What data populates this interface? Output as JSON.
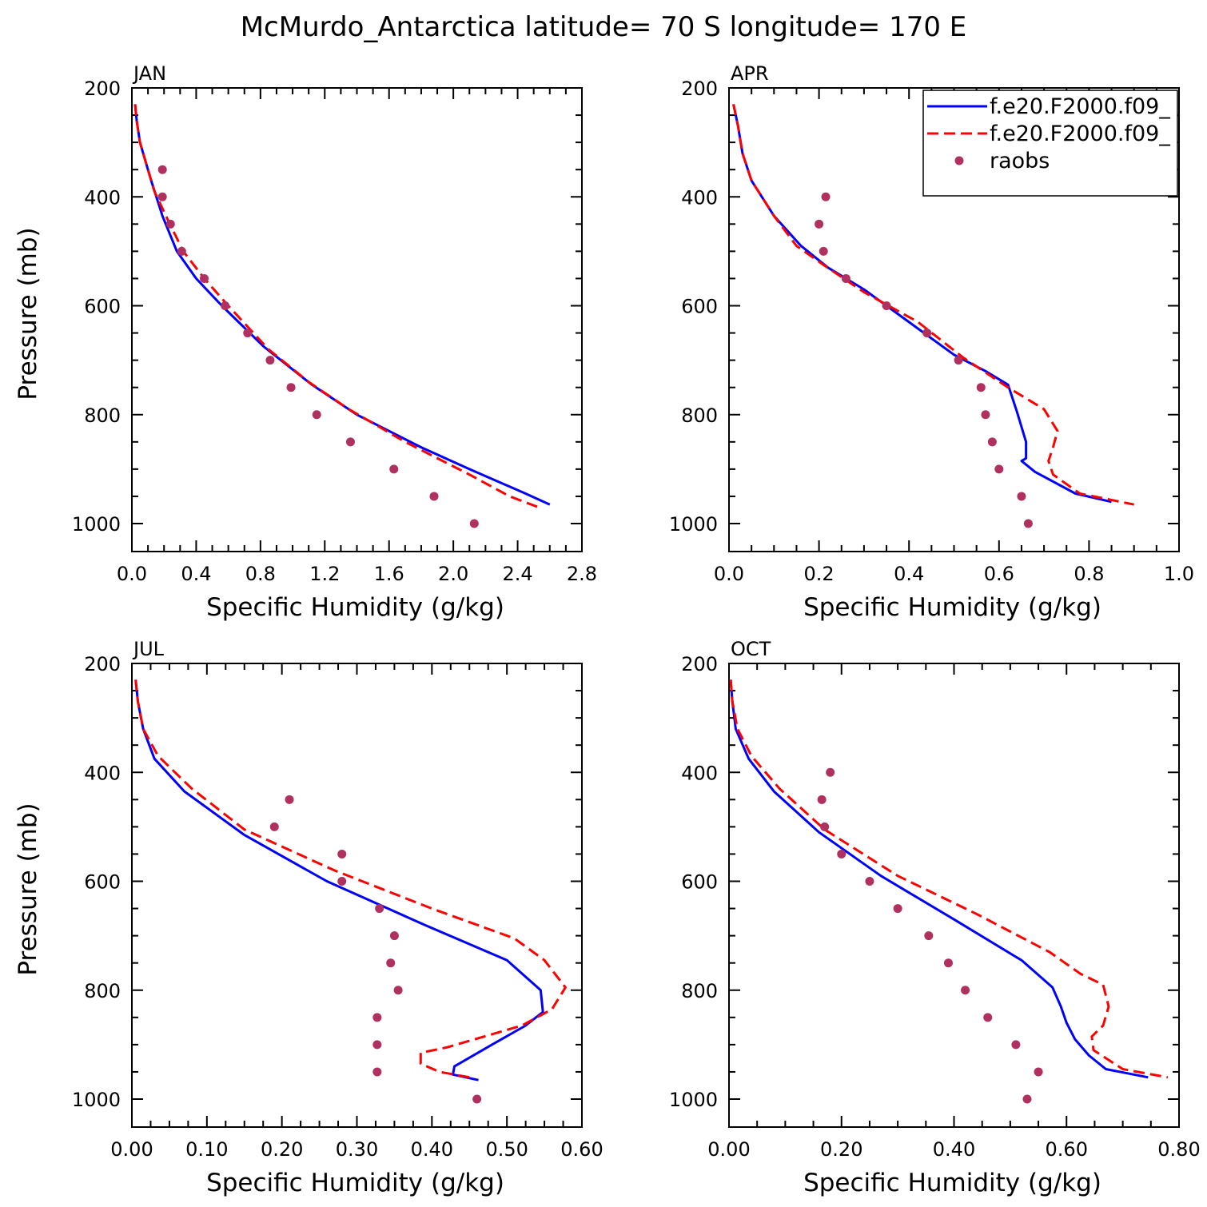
{
  "title": "McMurdo_Antarctica  latitude= 70 S longitude= 170 E",
  "colors": {
    "series1": "#0000ff",
    "series2": "#ff0000",
    "raobs": "#b03060",
    "axis": "#000000"
  },
  "legend": {
    "placement": "top-right of APR panel",
    "entries": [
      {
        "label": "f.e20.F2000.f09_",
        "style": "solid",
        "color": "#0000ff"
      },
      {
        "label": "f.e20.F2000.f09_",
        "style": "dashed",
        "color": "#ff0000"
      },
      {
        "label": "raobs",
        "style": "dot",
        "color": "#b03060"
      }
    ]
  },
  "chart_data": [
    {
      "type": "line",
      "panel": "JAN",
      "xlabel": "Specific Humidity (g/kg)",
      "ylabel": "Pressure (mb)",
      "xlim": [
        0,
        2.8
      ],
      "xticks": [
        "0.0",
        "0.4",
        "0.8",
        "1.2",
        "1.6",
        "2.0",
        "2.4",
        "2.8"
      ],
      "ylim": [
        200,
        1000
      ],
      "yticks": [
        "200",
        "400",
        "600",
        "800",
        "1000"
      ],
      "y_reversed": true,
      "series": [
        {
          "style": "solid",
          "color": "#0000ff",
          "x": [
            0.02,
            0.03,
            0.05,
            0.08,
            0.12,
            0.19,
            0.28,
            0.4,
            0.56,
            0.82,
            1.12,
            1.4,
            1.8,
            2.1,
            2.45,
            2.6
          ],
          "y": [
            230,
            260,
            300,
            330,
            370,
            435,
            500,
            550,
            600,
            675,
            745,
            800,
            860,
            900,
            945,
            965
          ]
        },
        {
          "style": "dashed",
          "color": "#ff0000",
          "x": [
            0.02,
            0.03,
            0.05,
            0.09,
            0.14,
            0.22,
            0.32,
            0.45,
            0.6,
            0.85,
            1.1,
            1.35,
            1.7,
            2.1,
            2.35,
            2.53
          ],
          "y": [
            230,
            260,
            300,
            340,
            390,
            440,
            500,
            550,
            600,
            680,
            740,
            790,
            850,
            910,
            950,
            970
          ]
        }
      ],
      "points": {
        "name": "raobs",
        "x": [
          0.19,
          0.19,
          0.24,
          0.31,
          0.45,
          0.58,
          0.72,
          0.86,
          0.99,
          1.15,
          1.36,
          1.63,
          1.88,
          2.13
        ],
        "y": [
          350,
          400,
          450,
          500,
          550,
          600,
          650,
          700,
          750,
          800,
          850,
          900,
          950,
          1000
        ]
      }
    },
    {
      "type": "line",
      "panel": "APR",
      "xlabel": "Specific Humidity (g/kg)",
      "ylabel": "",
      "xlim": [
        0,
        1.0
      ],
      "xticks": [
        "0.0",
        "0.2",
        "0.4",
        "0.6",
        "0.8",
        "1.0"
      ],
      "ylim": [
        200,
        1000
      ],
      "yticks": [
        "200",
        "400",
        "600",
        "800",
        "1000"
      ],
      "y_reversed": true,
      "series": [
        {
          "style": "solid",
          "color": "#0000ff",
          "x": [
            0.01,
            0.02,
            0.03,
            0.05,
            0.1,
            0.16,
            0.22,
            0.3,
            0.4,
            0.5,
            0.57,
            0.62,
            0.64,
            0.66,
            0.66,
            0.65,
            0.68,
            0.77,
            0.85
          ],
          "y": [
            230,
            270,
            320,
            370,
            435,
            490,
            530,
            570,
            630,
            690,
            720,
            745,
            795,
            850,
            880,
            885,
            905,
            945,
            960
          ]
        },
        {
          "style": "dashed",
          "color": "#ff0000",
          "x": [
            0.01,
            0.02,
            0.03,
            0.05,
            0.1,
            0.15,
            0.21,
            0.3,
            0.42,
            0.52,
            0.62,
            0.7,
            0.73,
            0.72,
            0.71,
            0.72,
            0.78,
            0.9
          ],
          "y": [
            230,
            270,
            320,
            370,
            435,
            490,
            525,
            575,
            630,
            695,
            750,
            790,
            830,
            860,
            885,
            910,
            945,
            965
          ]
        }
      ],
      "points": {
        "name": "raobs",
        "x": [
          0.215,
          0.2,
          0.21,
          0.26,
          0.35,
          0.44,
          0.51,
          0.56,
          0.57,
          0.585,
          0.6,
          0.65,
          0.665
        ],
        "y": [
          400,
          450,
          500,
          550,
          600,
          650,
          700,
          750,
          800,
          850,
          900,
          950,
          1000
        ]
      }
    },
    {
      "type": "line",
      "panel": "JUL",
      "xlabel": "Specific Humidity (g/kg)",
      "ylabel": "Pressure (mb)",
      "xlim": [
        0,
        0.6
      ],
      "xticks": [
        "0.00",
        "0.10",
        "0.20",
        "0.30",
        "0.40",
        "0.50",
        "0.60"
      ],
      "ylim": [
        200,
        1000
      ],
      "yticks": [
        "200",
        "400",
        "600",
        "800",
        "1000"
      ],
      "y_reversed": true,
      "series": [
        {
          "style": "solid",
          "color": "#0000ff",
          "x": [
            0.005,
            0.008,
            0.015,
            0.03,
            0.07,
            0.15,
            0.26,
            0.39,
            0.5,
            0.545,
            0.548,
            0.525,
            0.48,
            0.43,
            0.428,
            0.462
          ],
          "y": [
            230,
            270,
            320,
            375,
            435,
            515,
            600,
            680,
            745,
            800,
            840,
            865,
            900,
            940,
            955,
            965
          ]
        },
        {
          "style": "dashed",
          "color": "#ff0000",
          "x": [
            0.005,
            0.008,
            0.015,
            0.035,
            0.08,
            0.15,
            0.27,
            0.4,
            0.51,
            0.55,
            0.578,
            0.56,
            0.52,
            0.42,
            0.385,
            0.385,
            0.41,
            0.45
          ],
          "y": [
            230,
            270,
            320,
            370,
            430,
            505,
            580,
            650,
            705,
            745,
            795,
            835,
            865,
            905,
            915,
            935,
            950,
            960
          ]
        }
      ],
      "points": {
        "name": "raobs",
        "x": [
          0.21,
          0.19,
          0.28,
          0.28,
          0.33,
          0.35,
          0.345,
          0.355,
          0.327,
          0.327,
          0.327,
          0.46
        ],
        "y": [
          450,
          500,
          550,
          600,
          650,
          700,
          750,
          800,
          850,
          900,
          950,
          1000
        ]
      }
    },
    {
      "type": "line",
      "panel": "OCT",
      "xlabel": "Specific Humidity (g/kg)",
      "ylabel": "",
      "xlim": [
        0,
        0.8
      ],
      "xticks": [
        "0.00",
        "0.20",
        "0.40",
        "0.60",
        "0.80"
      ],
      "ylim": [
        200,
        1000
      ],
      "yticks": [
        "200",
        "400",
        "600",
        "800",
        "1000"
      ],
      "y_reversed": true,
      "series": [
        {
          "style": "solid",
          "color": "#0000ff",
          "x": [
            0.003,
            0.006,
            0.012,
            0.035,
            0.08,
            0.16,
            0.27,
            0.4,
            0.52,
            0.575,
            0.59,
            0.6,
            0.615,
            0.64,
            0.67,
            0.745
          ],
          "y": [
            230,
            270,
            320,
            375,
            435,
            510,
            590,
            670,
            745,
            795,
            830,
            860,
            890,
            920,
            945,
            960
          ]
        },
        {
          "style": "dashed",
          "color": "#ff0000",
          "x": [
            0.003,
            0.006,
            0.015,
            0.04,
            0.09,
            0.17,
            0.3,
            0.44,
            0.57,
            0.625,
            0.665,
            0.675,
            0.665,
            0.645,
            0.648,
            0.7,
            0.78
          ],
          "y": [
            230,
            270,
            320,
            370,
            430,
            505,
            590,
            660,
            730,
            770,
            790,
            830,
            865,
            885,
            910,
            945,
            960
          ]
        }
      ],
      "points": {
        "name": "raobs",
        "x": [
          0.18,
          0.165,
          0.17,
          0.2,
          0.25,
          0.3,
          0.355,
          0.39,
          0.42,
          0.46,
          0.51,
          0.55,
          0.53
        ],
        "y": [
          400,
          450,
          500,
          550,
          600,
          650,
          700,
          750,
          800,
          850,
          900,
          950,
          1000
        ]
      }
    }
  ]
}
